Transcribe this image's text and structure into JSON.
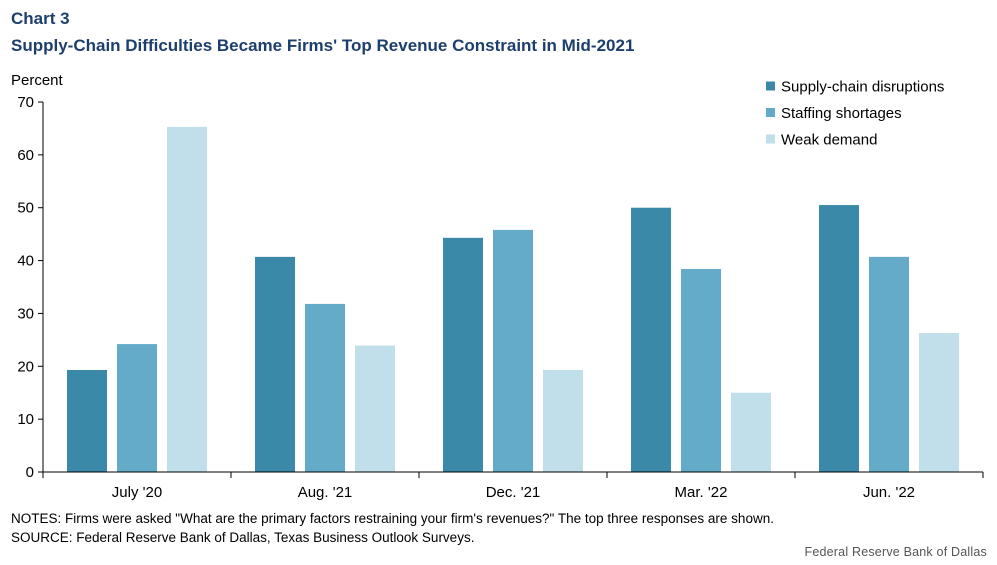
{
  "header": {
    "label": "Chart 3",
    "title": "Supply-Chain Difficulties Became Firms' Top Revenue Constraint in Mid-2021"
  },
  "chart_data": {
    "type": "bar",
    "ylabel": "Percent",
    "ylim": [
      0,
      70
    ],
    "yticks": [
      0,
      10,
      20,
      30,
      40,
      50,
      60,
      70
    ],
    "categories": [
      "July '20",
      "Aug. '21",
      "Dec. '21",
      "Mar. '22",
      "Jun. '22"
    ],
    "series": [
      {
        "name": "Supply-chain disruptions",
        "color": "#3a89a8",
        "values": [
          19.3,
          40.7,
          44.3,
          50.0,
          50.5
        ]
      },
      {
        "name": "Staffing shortages",
        "color": "#63abc8",
        "values": [
          24.2,
          31.8,
          45.8,
          38.4,
          40.7
        ]
      },
      {
        "name": "Weak demand",
        "color": "#c0dfea",
        "values": [
          65.3,
          23.9,
          19.3,
          15.0,
          26.3
        ]
      }
    ],
    "legend_position": "top-right",
    "grid": false
  },
  "footer": {
    "notes": "NOTES: Firms were asked \"What are the primary factors restraining your firm's revenues?\" The top three responses are shown.",
    "source": "SOURCE: Federal Reserve Bank of Dallas, Texas Business Outlook Surveys.",
    "credit": "Federal Reserve Bank of Dallas"
  }
}
